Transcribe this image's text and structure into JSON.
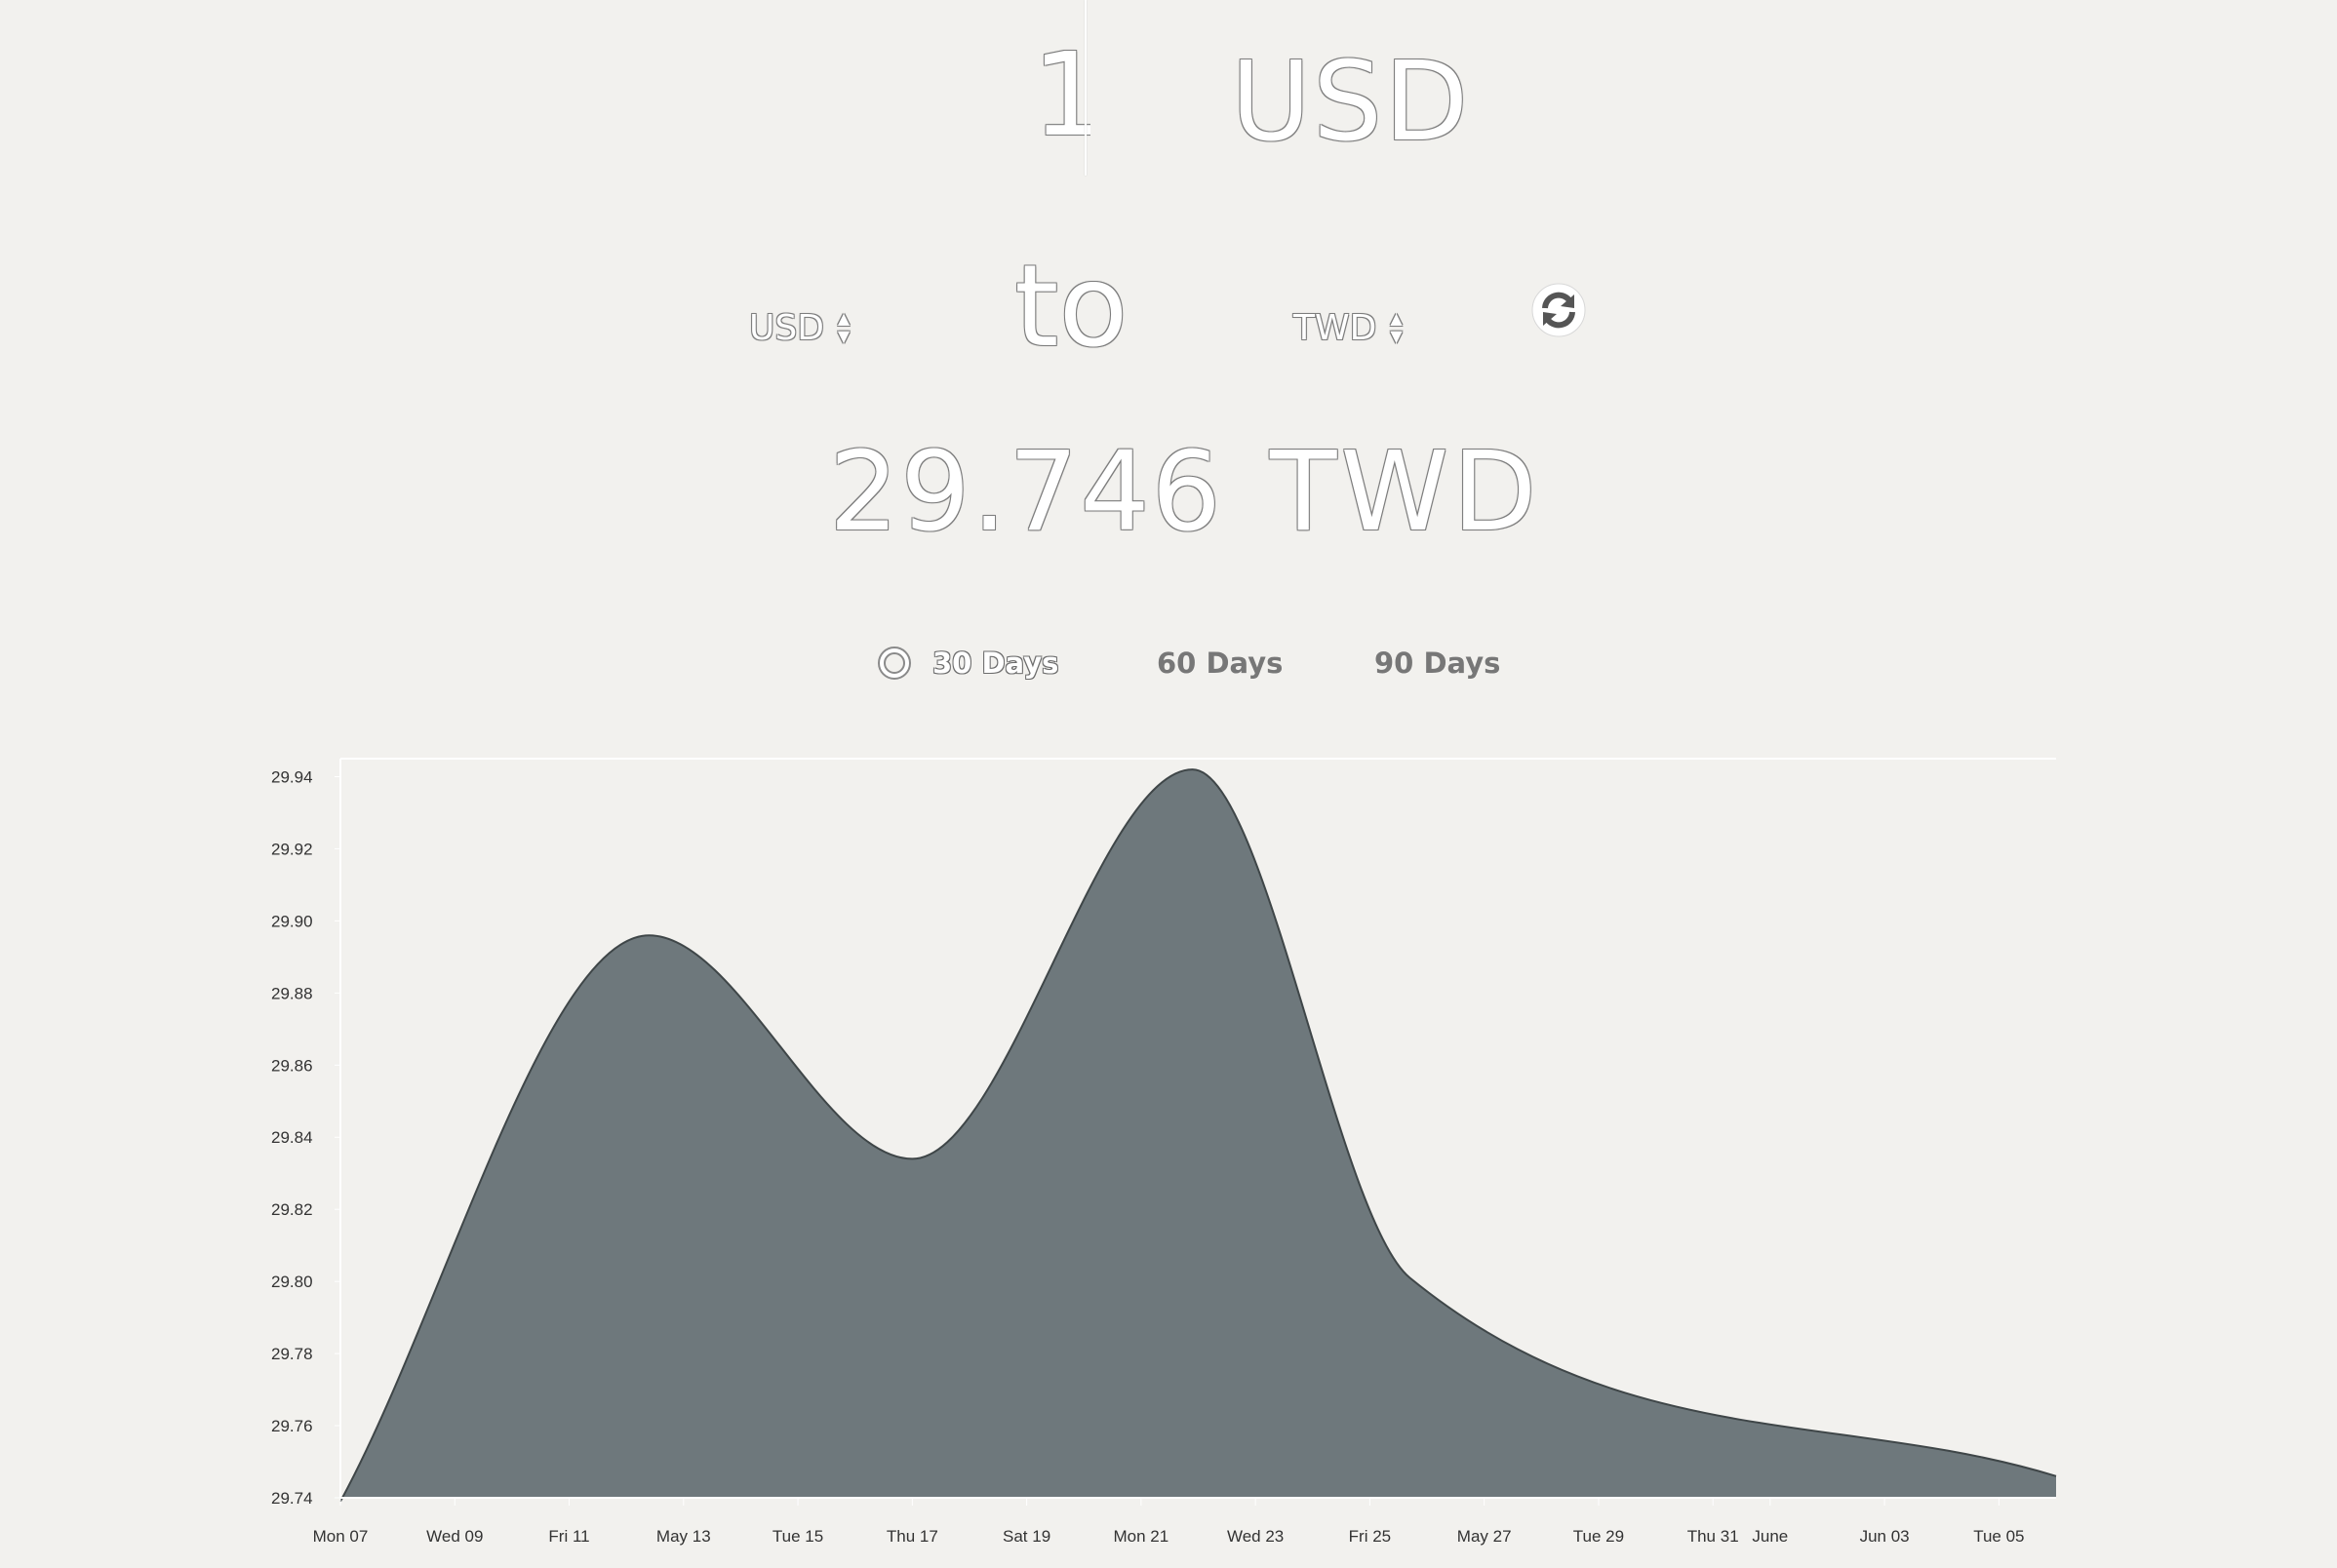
{
  "converter": {
    "amount": "1",
    "amount_currency": "USD",
    "from_currency": "USD",
    "to_word": "to",
    "to_currency": "TWD",
    "result_value": "29.746",
    "result_currency": "TWD",
    "icons": {
      "swap": "refresh-icon",
      "select_arrows": "up-down-arrows-icon"
    }
  },
  "ranges": [
    {
      "label": "30 Days",
      "selected": true
    },
    {
      "label": "60 Days",
      "selected": false
    },
    {
      "label": "90 Days",
      "selected": false
    }
  ],
  "colors": {
    "background": "#f2f1ee",
    "area_fill": "#6e787c",
    "area_stroke": "#3f4648"
  },
  "chart_data": {
    "type": "area",
    "title": "",
    "xlabel": "",
    "ylabel": "",
    "ylim": [
      29.74,
      29.945
    ],
    "y_ticks": [
      "29.74",
      "29.76",
      "29.78",
      "29.80",
      "29.82",
      "29.84",
      "29.86",
      "29.88",
      "29.90",
      "29.92",
      "29.94"
    ],
    "x_ticks": [
      "Mon 07",
      "Wed 09",
      "Fri 11",
      "May 13",
      "Tue 15",
      "Thu 17",
      "Sat 19",
      "Mon 21",
      "Wed 23",
      "Fri 25",
      "May 27",
      "Tue 29",
      "Thu 31",
      "June",
      "Jun 03",
      "Tue 05"
    ],
    "x_tick_days": [
      0,
      2,
      4,
      6,
      8,
      10,
      12,
      14,
      16,
      18,
      20,
      22,
      24,
      25,
      27,
      29
    ],
    "x_range_days": [
      0,
      30
    ],
    "series": [
      {
        "name": "USD to TWD",
        "x_days": [
          0,
          5.4,
          10,
          14.9,
          18.7,
          30
        ],
        "values": [
          29.739,
          29.896,
          29.834,
          29.942,
          29.801,
          29.746
        ]
      }
    ]
  }
}
